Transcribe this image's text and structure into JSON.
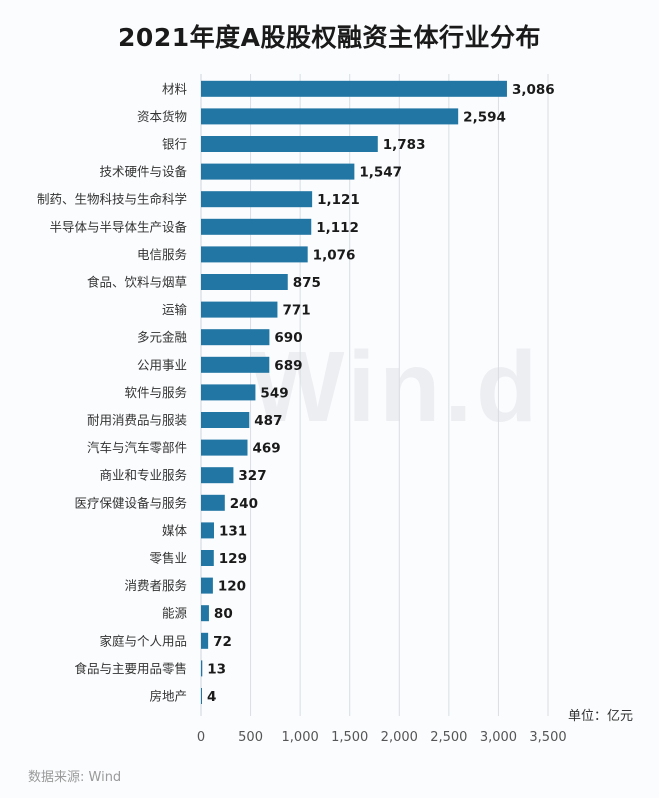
{
  "watermark": "Win.d",
  "unit_label": "单位：亿元",
  "source": "数据来源: Wind",
  "colors": {
    "bar": "#2176a3",
    "grid": "#d9dde3",
    "axis_text": "#555555",
    "label_text": "#1a1a1a"
  },
  "chart_data": {
    "type": "bar",
    "orientation": "horizontal",
    "title": "2021年度A股股权融资主体行业分布",
    "categories": [
      "材料",
      "资本货物",
      "银行",
      "技术硬件与设备",
      "制药、生物科技与生命科学",
      "半导体与半导体生产设备",
      "电信服务",
      "食品、饮料与烟草",
      "运输",
      "多元金融",
      "公用事业",
      "软件与服务",
      "耐用消费品与服装",
      "汽车与汽车零部件",
      "商业和专业服务",
      "医疗保健设备与服务",
      "媒体",
      "零售业",
      "消费者服务",
      "能源",
      "家庭与个人用品",
      "食品与主要用品零售",
      "房地产"
    ],
    "values": [
      3086,
      2594,
      1783,
      1547,
      1121,
      1112,
      1076,
      875,
      771,
      690,
      689,
      549,
      487,
      469,
      327,
      240,
      131,
      129,
      120,
      80,
      72,
      13,
      4
    ],
    "value_labels": [
      "3,086",
      "2,594",
      "1,783",
      "1,547",
      "1,121",
      "1,112",
      "1,076",
      "875",
      "771",
      "690",
      "689",
      "549",
      "487",
      "469",
      "327",
      "240",
      "131",
      "129",
      "120",
      "80",
      "72",
      "13",
      "4"
    ],
    "xlim": [
      0,
      3500
    ],
    "xticks": [
      0,
      500,
      1000,
      1500,
      2000,
      2500,
      3000,
      3500
    ],
    "xtick_labels": [
      "0",
      "500",
      "1,000",
      "1,500",
      "2,000",
      "2,500",
      "3,000",
      "3,500"
    ],
    "grid": "vertical",
    "xlabel": "",
    "ylabel": ""
  }
}
